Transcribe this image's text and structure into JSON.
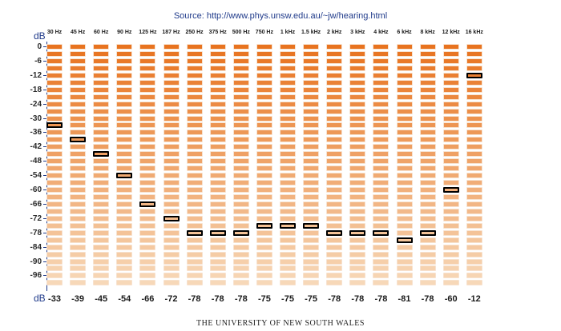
{
  "source": {
    "label": "Source:",
    "url": "http://www.phys.unsw.edu.au/~jw/hearing.html"
  },
  "unit_label": "dB",
  "footer": "THE UNIVERSITY OF NEW SOUTH WALES",
  "colors": {
    "accent": "#1f3a8a",
    "cell_top": "#e8731f",
    "cell_bottom": "#f7d8b8",
    "threshold_outline": "#000000"
  },
  "chart_data": {
    "type": "heatmap",
    "categories": [
      "30 Hz",
      "45 Hz",
      "60 Hz",
      "90 Hz",
      "125 Hz",
      "187 Hz",
      "250 Hz",
      "375 Hz",
      "500 Hz",
      "750 Hz",
      "1 kHz",
      "1.5 kHz",
      "2 kHz",
      "3 kHz",
      "4 kHz",
      "6 kHz",
      "8 kHz",
      "12 kHz",
      "16 kHz"
    ],
    "y_ticks": [
      "0",
      "-6",
      "-12",
      "-18",
      "-24",
      "-30",
      "-36",
      "-42",
      "-48",
      "-54",
      "-60",
      "-66",
      "-72",
      "-78",
      "-84",
      "-90",
      "-96"
    ],
    "ylim": [
      -100,
      0
    ],
    "values": [
      -33,
      -39,
      -45,
      -54,
      -66,
      -72,
      -78,
      -78,
      -78,
      -75,
      -75,
      -75,
      -78,
      -78,
      -78,
      -81,
      -78,
      -60,
      -12
    ],
    "value_labels": [
      "-33",
      "-39",
      "-45",
      "-54",
      "-66",
      "-72",
      "-78",
      "-78",
      "-78",
      "-75",
      "-75",
      "-75",
      "-78",
      "-78",
      "-78",
      "-81",
      "-78",
      "-60",
      "-12"
    ]
  }
}
